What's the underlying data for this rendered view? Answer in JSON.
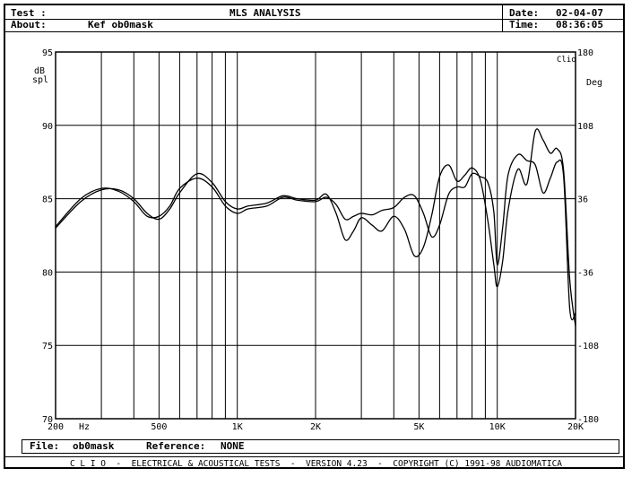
{
  "header": {
    "test_label": "Test :",
    "about_label": "About:",
    "about_value": "Kef ob0mask",
    "title": "MLS ANALYSIS",
    "date_label": "Date:",
    "date_value": "02-04-07",
    "time_label": "Time:",
    "time_value": "08:36:05"
  },
  "chart_data": {
    "type": "line",
    "ylabel": "dB\nspl",
    "y2label": "Deg",
    "corner_label": "Clio",
    "xlim": [
      200,
      20000
    ],
    "xscale": "log",
    "ylim": [
      70,
      95
    ],
    "y2lim": [
      -180,
      180
    ],
    "y_ticks": [
      70,
      75,
      80,
      85,
      90,
      95
    ],
    "y2_ticks": [
      -180,
      -108,
      -36,
      36,
      108,
      180
    ],
    "x_tick_labels": [
      {
        "x": 200,
        "label": "200"
      },
      {
        "x": 500,
        "label": "500"
      },
      {
        "x": 1000,
        "label": "1K"
      },
      {
        "x": 2000,
        "label": "2K"
      },
      {
        "x": 5000,
        "label": "5K"
      },
      {
        "x": 10000,
        "label": "10K"
      },
      {
        "x": 20000,
        "label": "20K"
      }
    ],
    "x_unit_label": "Hz",
    "grid": true,
    "series": [
      {
        "x": [
          200,
          250,
          300,
          350,
          400,
          450,
          500,
          550,
          600,
          700,
          800,
          900,
          1000,
          1100,
          1300,
          1500,
          1700,
          2000,
          2200,
          2400,
          2600,
          2800,
          3000,
          3300,
          3600,
          4000,
          4400,
          4800,
          5200,
          5600,
          6000,
          6500,
          7000,
          7500,
          8000,
          8600,
          9200,
          9700,
          10000,
          10500,
          11000,
          12000,
          13000,
          14000,
          15000,
          16000,
          17000,
          18000,
          19000,
          20000
        ],
        "y": [
          83.0,
          84.8,
          85.6,
          85.6,
          85.0,
          84.0,
          83.6,
          84.3,
          85.4,
          86.7,
          86.1,
          84.8,
          84.3,
          84.5,
          84.7,
          85.2,
          85.0,
          84.9,
          85.3,
          84.0,
          82.2,
          82.8,
          83.7,
          83.2,
          82.8,
          83.8,
          82.9,
          81.1,
          81.7,
          83.9,
          86.5,
          87.3,
          86.2,
          86.6,
          87.1,
          86.3,
          83.5,
          80.5,
          79.0,
          80.8,
          84.2,
          87.0,
          86.0,
          89.6,
          89.0,
          88.1,
          88.4,
          86.9,
          79.5,
          76.3
        ]
      },
      {
        "x": [
          200,
          250,
          300,
          350,
          400,
          450,
          500,
          550,
          600,
          700,
          800,
          900,
          1000,
          1100,
          1300,
          1500,
          1700,
          2000,
          2200,
          2400,
          2600,
          2800,
          3000,
          3300,
          3600,
          4000,
          4400,
          4800,
          5200,
          5600,
          6000,
          6500,
          7000,
          7500,
          8000,
          8600,
          9200,
          9700,
          10000,
          10500,
          11000,
          12000,
          13000,
          14000,
          15000,
          16000,
          17000,
          18000,
          19000,
          20000
        ],
        "y": [
          83.1,
          85.0,
          85.7,
          85.5,
          84.8,
          83.8,
          83.8,
          84.5,
          85.7,
          86.4,
          85.8,
          84.5,
          84.0,
          84.3,
          84.5,
          85.1,
          84.9,
          84.8,
          85.1,
          84.6,
          83.6,
          83.8,
          84.0,
          83.9,
          84.2,
          84.4,
          85.1,
          85.2,
          84.0,
          82.4,
          83.2,
          85.3,
          85.8,
          85.8,
          86.7,
          86.5,
          86.1,
          84.1,
          80.5,
          83.1,
          86.6,
          88.0,
          87.6,
          87.3,
          85.4,
          86.4,
          87.5,
          86.5,
          77.5,
          77.2
        ]
      }
    ]
  },
  "file_bar": {
    "file_label": "File:",
    "file_value": "ob0mask",
    "reference_label": "Reference:",
    "reference_value": "NONE"
  },
  "footer": {
    "text": "C L I O  -  ELECTRICAL & ACOUSTICAL TESTS  -  VERSION 4.23  -  COPYRIGHT (C) 1991-98 AUDIOMATICA"
  }
}
